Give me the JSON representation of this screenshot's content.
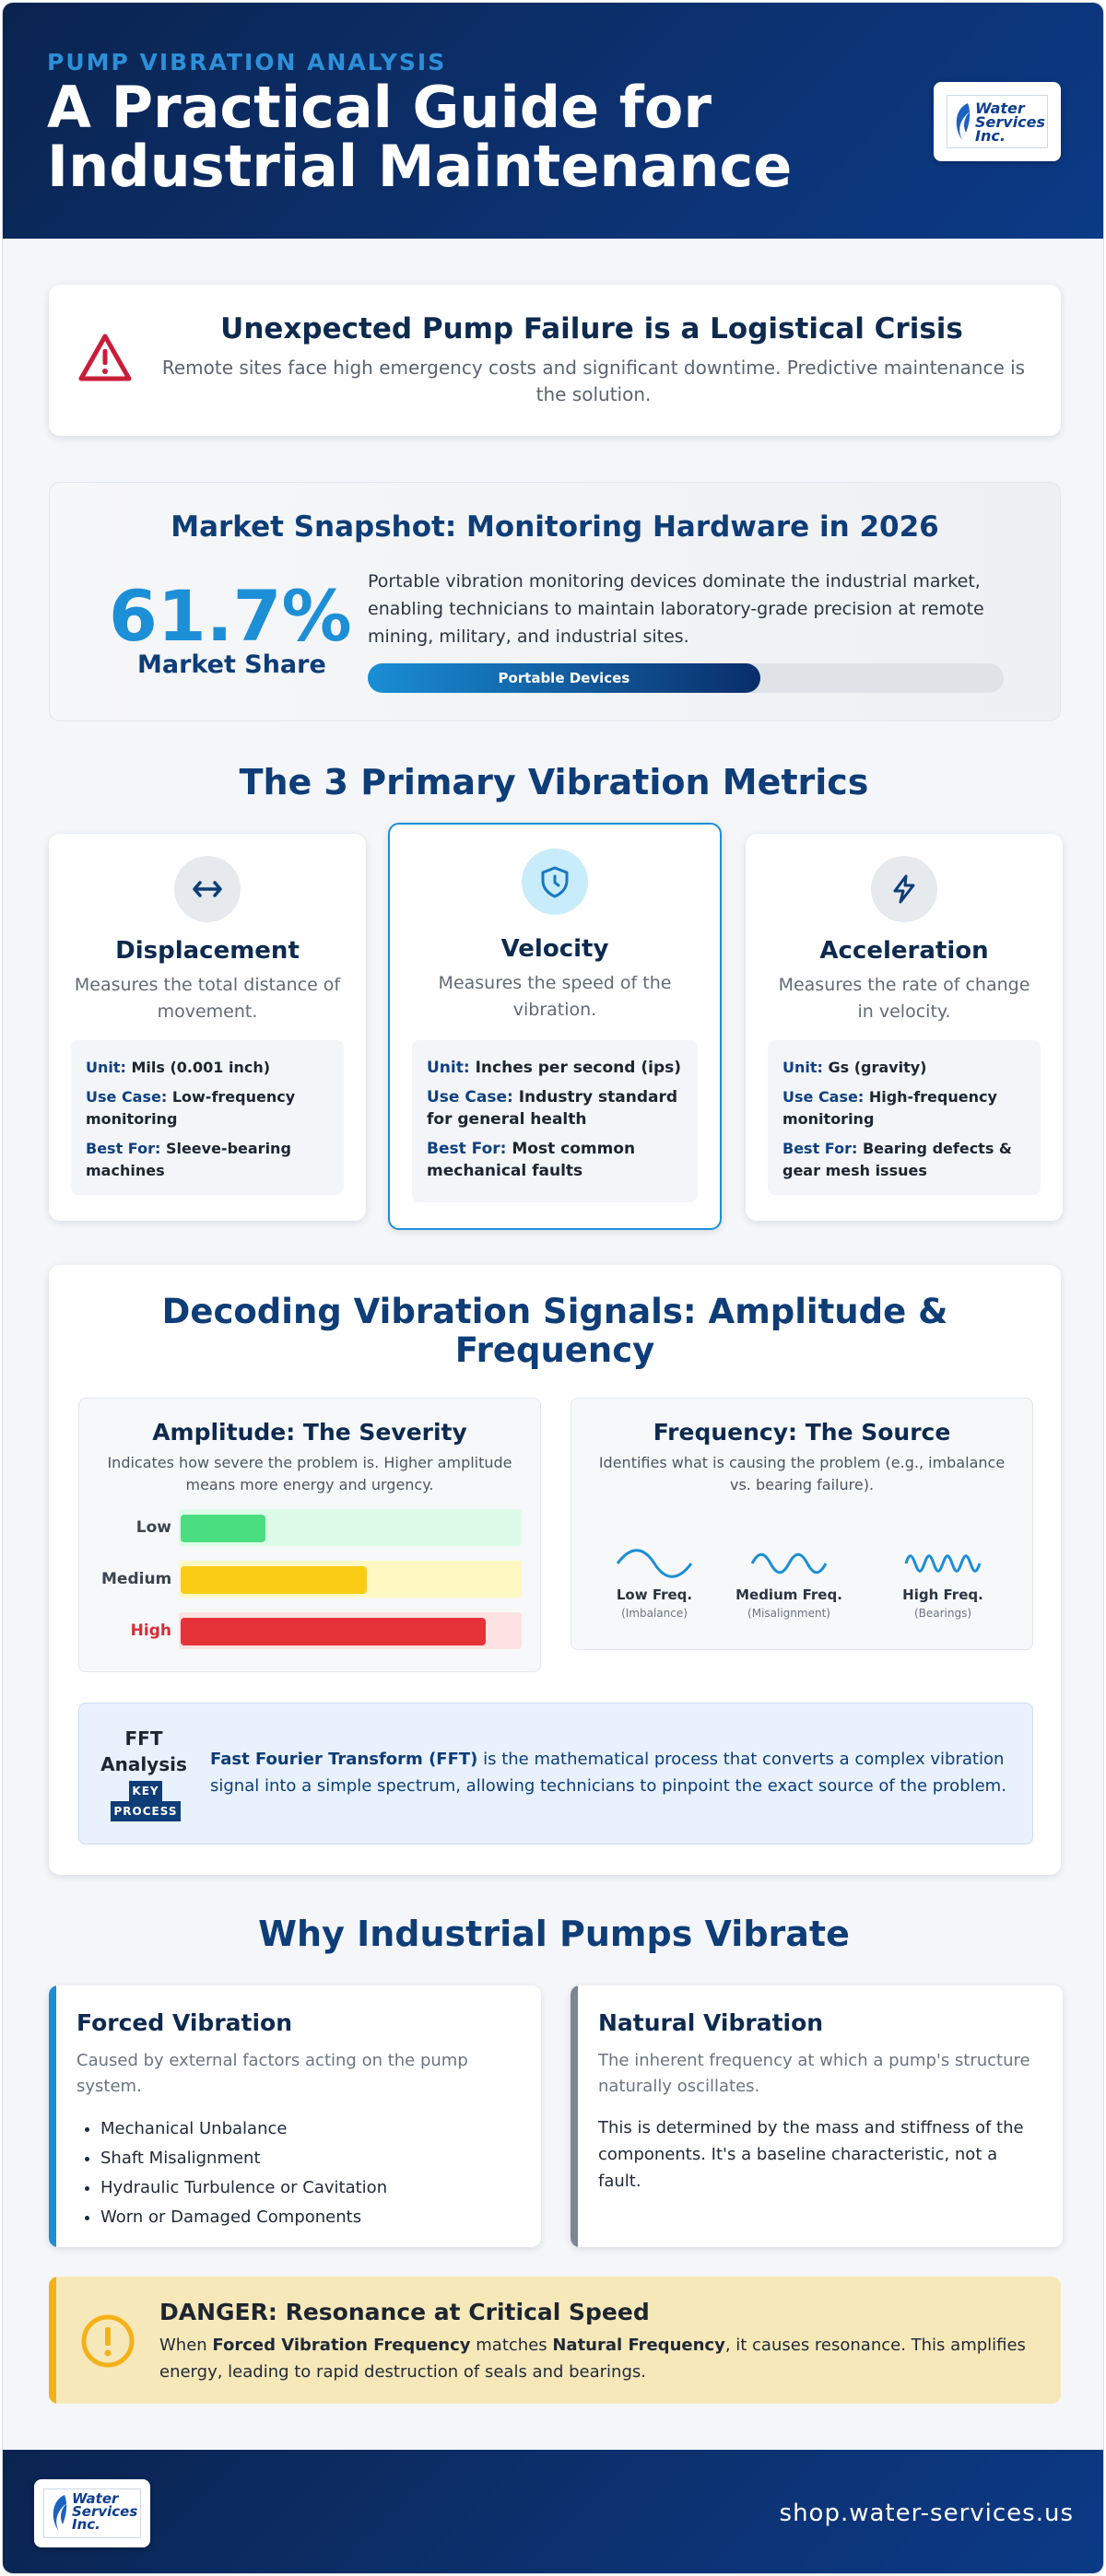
{
  "header": {
    "kicker": "PUMP VIBRATION ANALYSIS",
    "title_line1": "A Practical Guide for",
    "title_line2": "Industrial Maintenance",
    "logo_text_line1": "Water",
    "logo_text_line2": "Services",
    "logo_text_line3": "Inc."
  },
  "alert": {
    "icon": "warning-triangle-icon",
    "title": "Unexpected Pump Failure is a Logistical Crisis",
    "text": "Remote sites face high emergency costs and significant downtime. Predictive maintenance is the solution."
  },
  "market": {
    "title": "Market Snapshot: Monitoring Hardware in 2026",
    "value": "61.7%",
    "value_label": "Market Share",
    "text": "Portable vibration monitoring devices dominate the industrial market, enabling technicians to maintain laboratory-grade precision at remote mining, military, and industrial sites.",
    "bar_label": "Portable Devices",
    "bar_percent": 61.7
  },
  "metrics": {
    "title": "The 3 Primary Vibration Metrics",
    "items": [
      {
        "icon": "horizontal-arrows-icon",
        "name": "Displacement",
        "desc": "Measures the total distance of movement.",
        "unit_key": "Unit:",
        "unit": "Mils (0.001 inch)",
        "use_key": "Use Case:",
        "use": "Low-frequency monitoring",
        "best_key": "Best For:",
        "best": "Sleeve-bearing machines"
      },
      {
        "icon": "shield-clock-icon",
        "name": "Velocity",
        "desc": "Measures the speed of the vibration.",
        "unit_key": "Unit:",
        "unit": "Inches per second (ips)",
        "use_key": "Use Case:",
        "use": "Industry standard for general health",
        "best_key": "Best For:",
        "best": "Most common mechanical faults"
      },
      {
        "icon": "lightning-gear-icon",
        "name": "Acceleration",
        "desc": "Measures the rate of change in velocity.",
        "unit_key": "Unit:",
        "unit": "Gs (gravity)",
        "use_key": "Use Case:",
        "use": "High-frequency monitoring",
        "best_key": "Best For:",
        "best": "Bearing defects & gear mesh issues"
      }
    ]
  },
  "decoding": {
    "title_line1": "Decoding Vibration Signals: Amplitude &",
    "title_line2": "Frequency",
    "amplitude": {
      "title": "Amplitude: The Severity",
      "desc": "Indicates how severe the problem is. Higher amplitude means more energy and urgency.",
      "levels": [
        {
          "label": "Low",
          "fill": 0.25,
          "color": "#4ade80",
          "track": "#dcfce7"
        },
        {
          "label": "Medium",
          "fill": 0.55,
          "color": "#facc15",
          "track": "#fef9c3"
        },
        {
          "label": "High",
          "fill": 0.9,
          "color": "#e53238",
          "track": "#fde2e2"
        }
      ]
    },
    "frequency": {
      "title": "Frequency: The Source",
      "desc": "Identifies what is causing the problem (e.g., imbalance vs. bearing failure).",
      "waves": [
        {
          "name": "Low Freq.",
          "sub": "(Imbalance)"
        },
        {
          "name": "Medium Freq.",
          "sub": "(Misalignment)"
        },
        {
          "name": "High Freq.",
          "sub": "(Bearings)"
        }
      ]
    },
    "fft": {
      "title_line1": "FFT",
      "title_line2": "Analysis",
      "key_line1": "KEY",
      "key_line2": "PROCESS",
      "text_bold": "Fast Fourier Transform (FFT)",
      "text_rest": " is the mathematical process that converts a complex vibration signal into a simple spectrum, allowing technicians to pinpoint the exact source of the problem."
    }
  },
  "why": {
    "title": "Why Industrial Pumps Vibrate",
    "forced": {
      "title": "Forced Vibration",
      "desc": "Caused by external factors acting on the pump system.",
      "items": [
        "Mechanical Unbalance",
        "Shaft Misalignment",
        "Hydraulic Turbulence or Cavitation",
        "Worn or Damaged Components"
      ]
    },
    "natural": {
      "title": "Natural Vibration",
      "desc": "The inherent frequency at which a pump's structure naturally oscillates.",
      "text": "This is determined by the mass and stiffness of the components. It's a baseline characteristic, not a fault."
    }
  },
  "danger": {
    "icon": "exclamation-circle-icon",
    "title": "DANGER: Resonance at Critical Speed",
    "t1": "When ",
    "b1": "Forced Vibration Frequency",
    "t2": " matches ",
    "b2": "Natural Frequency",
    "t3": ", it causes resonance. This amplifies energy, leading to rapid destruction of seals and bearings."
  },
  "footer": {
    "url": "shop.water-services.us"
  },
  "colors": {
    "navy": "#0d3272",
    "accent_blue": "#1c8fd6",
    "danger_yellow": "#f4b118",
    "natural_gray": "#7b8594"
  }
}
